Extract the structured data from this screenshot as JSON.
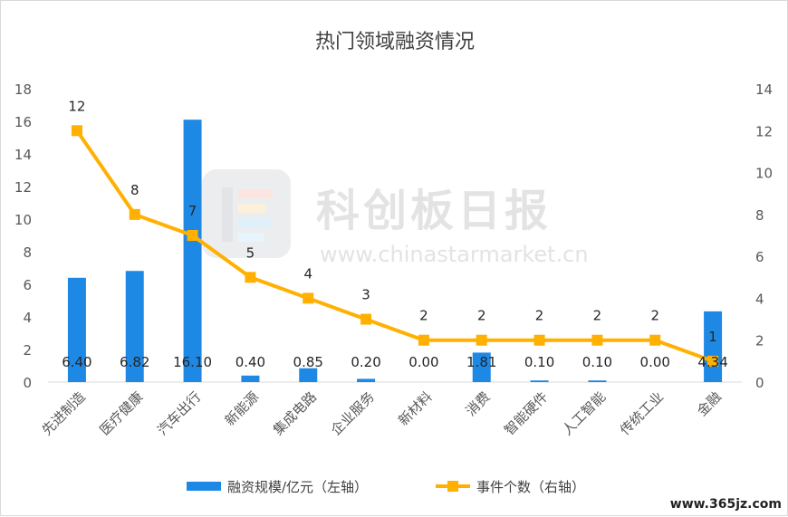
{
  "chart_data": {
    "type": "bar+line",
    "title": "热门领域融资情况",
    "categories": [
      "先进制造",
      "医疗健康",
      "汽车出行",
      "新能源",
      "集成电路",
      "企业服务",
      "新材料",
      "消费",
      "智能硬件",
      "人工智能",
      "传统工业",
      "金融"
    ],
    "series": [
      {
        "name": "融资规模/亿元（左轴）",
        "type": "bar",
        "axis": "left",
        "values": [
          6.4,
          6.82,
          16.1,
          0.4,
          0.85,
          0.2,
          0.0,
          1.81,
          0.1,
          0.1,
          0.0,
          4.34
        ],
        "labels": [
          "6.40",
          "6.82",
          "16.10",
          "0.40",
          "0.85",
          "0.20",
          "0.00",
          "1.81",
          "0.10",
          "0.10",
          "0.00",
          "4.34"
        ],
        "color": "#1E88E5"
      },
      {
        "name": "事件个数（右轴）",
        "type": "line",
        "axis": "right",
        "values": [
          12,
          8,
          7,
          5,
          4,
          3,
          2,
          2,
          2,
          2,
          2,
          1
        ],
        "labels": [
          "12",
          "8",
          "7",
          "5",
          "4",
          "3",
          "2",
          "2",
          "2",
          "2",
          "2",
          "1"
        ],
        "color": "#FFB000"
      }
    ],
    "y_left": {
      "min": 0,
      "max": 18,
      "ticks": [
        "0",
        "2",
        "4",
        "6",
        "8",
        "10",
        "12",
        "14",
        "16",
        "18"
      ]
    },
    "y_right": {
      "min": 0,
      "max": 14,
      "ticks": [
        "0",
        "2",
        "4",
        "6",
        "8",
        "10",
        "12",
        "14"
      ]
    },
    "grid": false,
    "legend": "bottom"
  },
  "watermark": {
    "name": "科创板日报",
    "url": "www.chinastarmarket.cn"
  },
  "source_mark": "www.365jz.com"
}
